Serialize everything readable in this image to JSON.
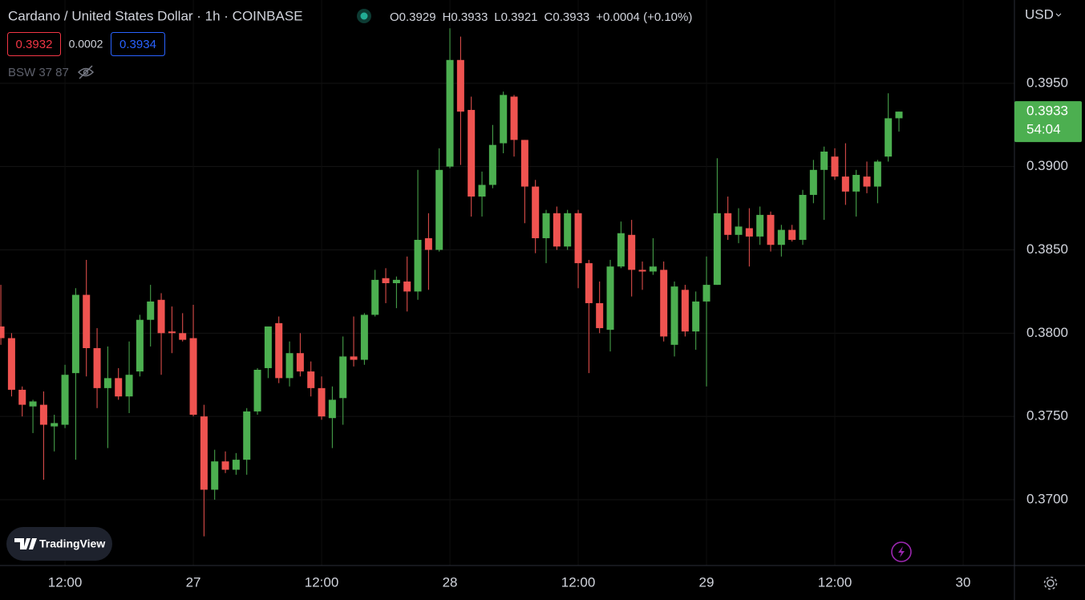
{
  "toolbar": {
    "title": "Cardano / United States Dollar · 1h · COINBASE",
    "ohlc": [
      {
        "label": "O",
        "value": "0.3929"
      },
      {
        "label": "H",
        "value": "0.3933"
      },
      {
        "label": "L",
        "value": "0.3921"
      },
      {
        "label": "C",
        "value": "0.3933"
      }
    ],
    "change": "+0.0004 (+0.10%)",
    "bid": "0.3932",
    "spread": "0.0002",
    "ask": "0.3934",
    "indicator": "BSW 37 87",
    "currency": "USD",
    "brand": "TradingView"
  },
  "chart_data": {
    "type": "candlestick",
    "x": [
      -18,
      -17,
      -16,
      -15,
      -14,
      -13,
      -12,
      -11,
      -10,
      -9,
      -8,
      -7,
      -6,
      -5,
      -4,
      -3,
      -2,
      -1,
      0,
      1,
      2,
      3,
      4,
      5,
      6,
      7,
      8,
      9,
      10,
      11,
      12,
      13,
      14,
      15,
      16,
      17,
      18,
      19,
      20,
      21,
      22,
      23,
      24,
      25,
      26,
      27,
      28,
      29,
      30,
      31,
      32,
      33,
      34,
      35,
      36,
      37,
      38,
      39,
      40,
      41,
      42,
      43,
      44,
      45,
      46,
      47,
      48,
      49,
      50,
      51,
      52,
      53,
      54,
      55,
      56,
      57,
      58,
      59,
      60,
      61,
      62,
      63,
      64,
      65,
      66
    ],
    "open": [
      0.3804,
      0.3797,
      0.3766,
      0.3756,
      0.3757,
      0.3744,
      0.3745,
      0.3776,
      0.3823,
      0.3791,
      0.3767,
      0.3773,
      0.3762,
      0.3777,
      0.3808,
      0.382,
      0.3801,
      0.38,
      0.3797,
      0.375,
      0.3706,
      0.3723,
      0.3718,
      0.3724,
      0.3753,
      0.3779,
      0.3806,
      0.3773,
      0.3788,
      0.3777,
      0.3767,
      0.3749,
      0.3761,
      0.3786,
      0.3784,
      0.3811,
      0.3833,
      0.383,
      0.3831,
      0.3825,
      0.3857,
      0.385,
      0.39,
      0.3964,
      0.3934,
      0.3882,
      0.3889,
      0.3914,
      0.3942,
      0.3916,
      0.3888,
      0.3857,
      0.3872,
      0.3852,
      0.3872,
      0.3842,
      0.3818,
      0.3802,
      0.384,
      0.3859,
      0.3838,
      0.3837,
      0.3838,
      0.3793,
      0.3826,
      0.3801,
      0.3819,
      0.3829,
      0.3872,
      0.3859,
      0.3863,
      0.3858,
      0.3871,
      0.3853,
      0.3862,
      0.3856,
      0.3883,
      0.3898,
      0.3906,
      0.3894,
      0.3885,
      0.3894,
      0.3888,
      0.3906,
      0.3929
    ],
    "high": [
      0.3829,
      0.38,
      0.3768,
      0.376,
      0.3765,
      0.3751,
      0.3781,
      0.3827,
      0.3844,
      0.3803,
      0.3792,
      0.3779,
      0.3795,
      0.3811,
      0.3829,
      0.3824,
      0.3816,
      0.3812,
      0.3817,
      0.3757,
      0.373,
      0.3729,
      0.3728,
      0.3755,
      0.3779,
      0.3804,
      0.381,
      0.3795,
      0.38,
      0.3783,
      0.3774,
      0.3768,
      0.3798,
      0.381,
      0.3812,
      0.3838,
      0.3839,
      0.3834,
      0.3846,
      0.3898,
      0.3872,
      0.3911,
      0.3983,
      0.3978,
      0.3942,
      0.3897,
      0.3925,
      0.3945,
      0.3943,
      0.3916,
      0.3892,
      0.3874,
      0.3876,
      0.3874,
      0.3874,
      0.3844,
      0.3831,
      0.3844,
      0.3867,
      0.3868,
      0.3843,
      0.3857,
      0.3843,
      0.3831,
      0.3829,
      0.3825,
      0.3846,
      0.3905,
      0.3882,
      0.3875,
      0.3875,
      0.3876,
      0.3873,
      0.3865,
      0.3865,
      0.3886,
      0.3904,
      0.3912,
      0.3911,
      0.3914,
      0.3898,
      0.3903,
      0.3904,
      0.3944,
      0.3933
    ],
    "low": [
      0.3793,
      0.3762,
      0.375,
      0.374,
      0.3712,
      0.3729,
      0.3743,
      0.3724,
      0.3774,
      0.3755,
      0.3731,
      0.376,
      0.3752,
      0.3774,
      0.3792,
      0.3775,
      0.3788,
      0.3795,
      0.375,
      0.3678,
      0.37,
      0.3716,
      0.3715,
      0.3715,
      0.3751,
      0.3773,
      0.377,
      0.3768,
      0.3774,
      0.3762,
      0.3748,
      0.3731,
      0.3745,
      0.378,
      0.3781,
      0.381,
      0.3818,
      0.3815,
      0.3813,
      0.382,
      0.3826,
      0.3849,
      0.3899,
      0.3901,
      0.387,
      0.387,
      0.3887,
      0.3908,
      0.3906,
      0.3866,
      0.3848,
      0.3842,
      0.385,
      0.385,
      0.3827,
      0.3776,
      0.38,
      0.3789,
      0.3839,
      0.3822,
      0.3826,
      0.3835,
      0.3795,
      0.3786,
      0.3798,
      0.379,
      0.3768,
      0.3829,
      0.3856,
      0.3854,
      0.384,
      0.3853,
      0.3849,
      0.3846,
      0.3855,
      0.3853,
      0.3878,
      0.3868,
      0.3892,
      0.3877,
      0.387,
      0.3884,
      0.3878,
      0.3903,
      0.3921
    ],
    "close": [
      0.3797,
      0.3766,
      0.3757,
      0.3759,
      0.3745,
      0.3746,
      0.3775,
      0.3823,
      0.3791,
      0.3767,
      0.3773,
      0.3762,
      0.3775,
      0.3808,
      0.3819,
      0.38,
      0.38,
      0.3796,
      0.3751,
      0.3706,
      0.3723,
      0.3718,
      0.3724,
      0.3753,
      0.3778,
      0.3804,
      0.3773,
      0.3788,
      0.3777,
      0.3767,
      0.375,
      0.376,
      0.3786,
      0.3784,
      0.3811,
      0.3832,
      0.383,
      0.3832,
      0.3825,
      0.3856,
      0.385,
      0.3898,
      0.3964,
      0.3933,
      0.3882,
      0.3889,
      0.3913,
      0.3943,
      0.3916,
      0.3888,
      0.3857,
      0.3872,
      0.3852,
      0.3872,
      0.3842,
      0.3818,
      0.3803,
      0.384,
      0.386,
      0.3838,
      0.3837,
      0.384,
      0.3798,
      0.3828,
      0.3801,
      0.3819,
      0.3829,
      0.3872,
      0.3859,
      0.3864,
      0.3858,
      0.3871,
      0.3853,
      0.3862,
      0.3856,
      0.3883,
      0.3898,
      0.3909,
      0.3894,
      0.3885,
      0.3895,
      0.3888,
      0.3903,
      0.3929,
      0.3933
    ],
    "up_color": "#4caf50",
    "down_color": "#ef5350",
    "xlim": [
      -18.08,
      76.8
    ],
    "xticks": [
      {
        "value": -12,
        "label": "12:00"
      },
      {
        "value": 0,
        "label": "27"
      },
      {
        "value": 12,
        "label": "12:00"
      },
      {
        "value": 24,
        "label": "28"
      },
      {
        "value": 36,
        "label": "12:00"
      },
      {
        "value": 48,
        "label": "29"
      },
      {
        "value": 60,
        "label": "12:00"
      },
      {
        "value": 72,
        "label": "30"
      }
    ],
    "ylim": [
      0.36605,
      0.4
    ],
    "yticks": [
      {
        "value": 0.37,
        "label": "0.3700"
      },
      {
        "value": 0.375,
        "label": "0.3750"
      },
      {
        "value": 0.38,
        "label": "0.3800"
      },
      {
        "value": 0.385,
        "label": "0.3850"
      },
      {
        "value": 0.39,
        "label": "0.3900"
      },
      {
        "value": 0.395,
        "label": "0.3950"
      }
    ],
    "grid": true,
    "last_price": 0.3933,
    "countdown": "54:04"
  }
}
